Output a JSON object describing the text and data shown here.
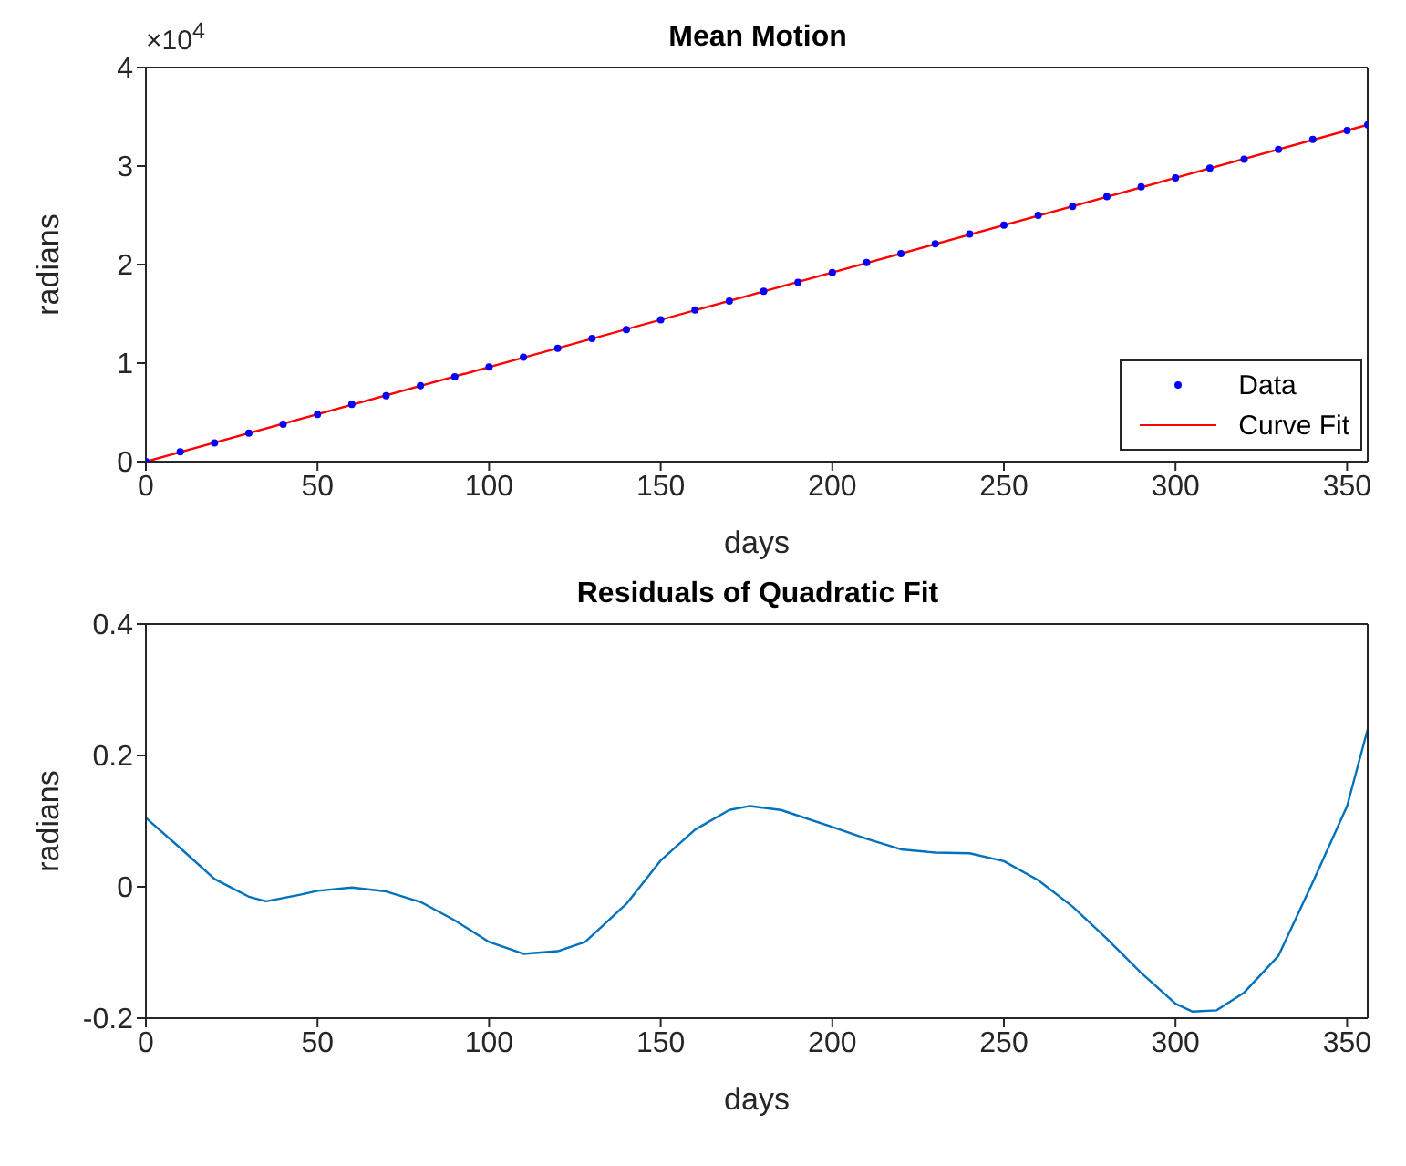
{
  "chart_data": [
    {
      "type": "scatter",
      "title": "Mean Motion",
      "xlabel": "days",
      "ylabel": "radians",
      "annotations": [
        "×10$^{4}$"
      ],
      "xlim": [
        0,
        356
      ],
      "xticks": [
        0,
        50,
        100,
        150,
        200,
        250,
        300,
        350
      ],
      "ylim": [
        0,
        4
      ],
      "yticks": [
        0,
        1,
        2,
        3,
        4
      ],
      "legend": "bottom right",
      "series": [
        {
          "name": "Data",
          "type": "scatter",
          "color": "#0000ff",
          "marker": "circle",
          "x": [
            0,
            10,
            20,
            30,
            40,
            50,
            60,
            70,
            80,
            90,
            100,
            110,
            120,
            130,
            140,
            150,
            160,
            170,
            180,
            190,
            200,
            210,
            220,
            230,
            240,
            250,
            260,
            270,
            280,
            290,
            300,
            310,
            320,
            330,
            340,
            350,
            356
          ],
          "values": [
            0,
            0.1,
            0.19,
            0.29,
            0.38,
            0.48,
            0.58,
            0.67,
            0.77,
            0.86,
            0.96,
            1.06,
            1.15,
            1.25,
            1.34,
            1.44,
            1.54,
            1.63,
            1.73,
            1.82,
            1.92,
            2.02,
            2.11,
            2.21,
            2.31,
            2.4,
            2.5,
            2.59,
            2.69,
            2.79,
            2.88,
            2.98,
            3.07,
            3.17,
            3.27,
            3.36,
            3.42
          ]
        },
        {
          "name": "Curve Fit",
          "type": "line",
          "color": "#ff0000",
          "marker": "none",
          "line_style": "solid",
          "x": [
            0,
            100,
            200,
            300,
            356
          ],
          "values": [
            0,
            0.96,
            1.92,
            2.88,
            3.42
          ]
        }
      ]
    },
    {
      "type": "line",
      "title": "Residuals of Quadratic Fit",
      "xlabel": "days",
      "ylabel": "radians",
      "xlim": [
        0,
        356
      ],
      "xticks": [
        0,
        50,
        100,
        150,
        200,
        250,
        300,
        350
      ],
      "ylim": [
        -0.2,
        0.4
      ],
      "yticks": [
        -0.2,
        0,
        0.2,
        0.4
      ],
      "legend": false,
      "marker": "none",
      "line_style": "solid",
      "series": [
        {
          "color": "#0072bd",
          "x": [
            0,
            10,
            20,
            30,
            35,
            45,
            50,
            60,
            70,
            80,
            90,
            100,
            110,
            120,
            128,
            140,
            150,
            160,
            170,
            176,
            185,
            200,
            210,
            220,
            230,
            240,
            250,
            260,
            270,
            280,
            290,
            300,
            305,
            312,
            320,
            330,
            340,
            350,
            356
          ],
          "values": [
            0.105,
            0.059,
            0.012,
            -0.015,
            -0.022,
            -0.012,
            -0.006,
            -0.001,
            -0.007,
            -0.023,
            -0.051,
            -0.084,
            -0.102,
            -0.098,
            -0.084,
            -0.026,
            0.04,
            0.087,
            0.117,
            0.123,
            0.117,
            0.091,
            0.073,
            0.057,
            0.052,
            0.051,
            0.039,
            0.01,
            -0.03,
            -0.079,
            -0.131,
            -0.178,
            -0.19,
            -0.188,
            -0.161,
            -0.105,
            0.007,
            0.123,
            0.24
          ]
        }
      ]
    }
  ]
}
